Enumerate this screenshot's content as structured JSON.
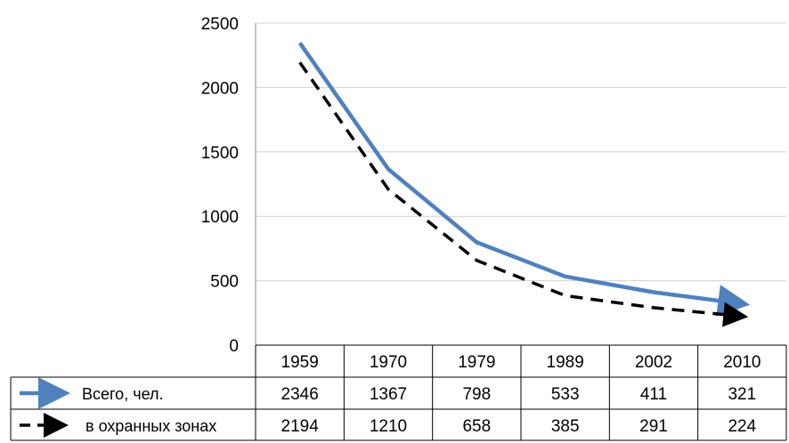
{
  "chart_data": {
    "type": "line",
    "categories": [
      "1959",
      "1970",
      "1979",
      "1989",
      "2002",
      "2010"
    ],
    "series": [
      {
        "name": "Всего, чел.",
        "values": [
          2346,
          1367,
          798,
          533,
          411,
          321
        ],
        "style": "solid",
        "color": "#4f81bd"
      },
      {
        "name": "в охранных зонах",
        "values": [
          2194,
          1210,
          658,
          385,
          291,
          224
        ],
        "style": "dashed",
        "color": "#000000"
      }
    ],
    "yticks": [
      "0",
      "500",
      "1000",
      "1500",
      "2000",
      "2500"
    ],
    "ylim": [
      0,
      2500
    ],
    "grid": true,
    "legend": "data-table-left"
  }
}
